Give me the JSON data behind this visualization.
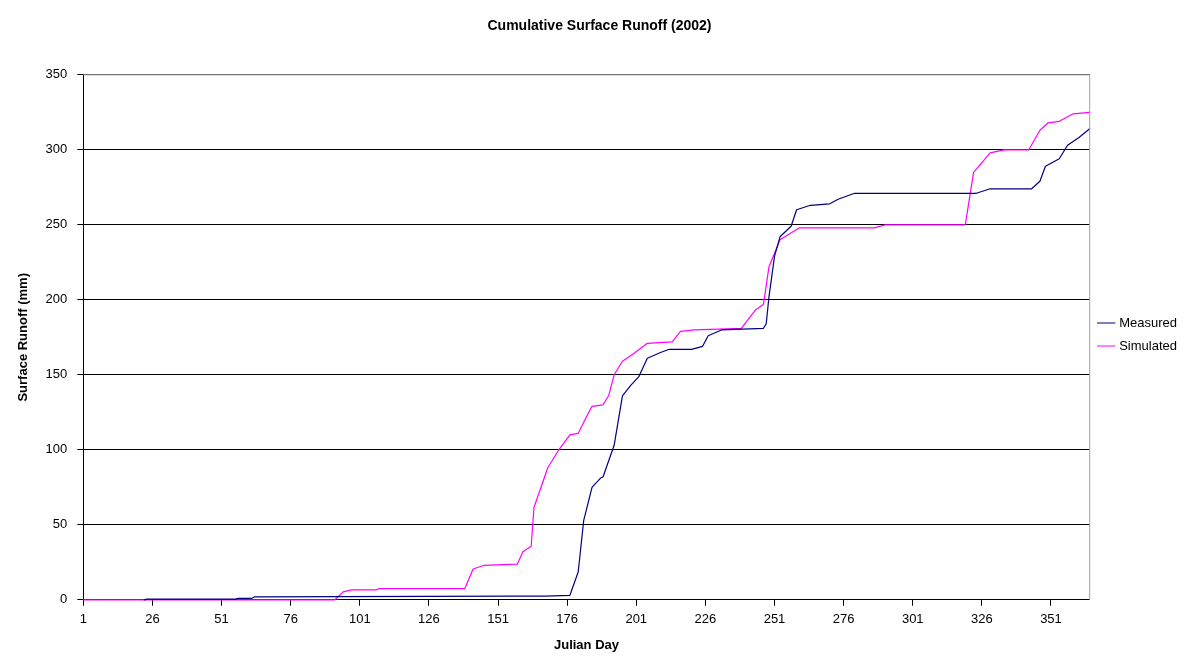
{
  "chart_data": {
    "type": "line",
    "title": "Cumulative Surface Runoff (2002)",
    "xlabel": "Julian Day",
    "ylabel": "Surface Runoff (mm)",
    "xlim": [
      1,
      365
    ],
    "xticks": [
      1,
      26,
      51,
      76,
      101,
      126,
      151,
      176,
      201,
      226,
      251,
      276,
      301,
      326,
      351
    ],
    "ylim": [
      0,
      350
    ],
    "yticks": [
      0,
      50,
      100,
      150,
      200,
      250,
      300,
      350
    ],
    "grid": "y",
    "legend": "right",
    "marker": "none",
    "line_style": "solid",
    "series": [
      {
        "name": "Measured",
        "color": "#000080",
        "x": [
          23,
          24,
          56,
          57,
          62,
          63,
          168,
          177,
          180,
          182,
          185,
          188,
          189,
          193,
          196,
          199,
          202,
          205,
          210,
          213,
          221,
          225,
          227,
          232,
          247,
          248,
          249,
          251,
          253,
          257,
          259,
          264,
          271,
          274,
          280,
          324,
          329,
          344,
          347,
          349,
          354,
          357,
          361,
          365
        ],
        "values": [
          0,
          0.5,
          0.5,
          1,
          1,
          2,
          2.5,
          3,
          18.5,
          53,
          75,
          81,
          82,
          103,
          136,
          143,
          149,
          161,
          165,
          167,
          167,
          169,
          176,
          180,
          181,
          184,
          202,
          229,
          242,
          249,
          260,
          263,
          264,
          267,
          271,
          271,
          274,
          274,
          279,
          289,
          294,
          303,
          308,
          314
        ]
      },
      {
        "name": "Simulated",
        "color": "#ff00ff",
        "x": [
          1,
          92,
          95,
          98,
          107,
          108,
          139,
          142,
          146,
          158,
          160,
          163,
          164,
          169,
          173,
          177,
          180,
          183,
          185,
          189,
          191,
          193,
          196,
          200,
          205,
          214,
          217,
          222,
          239,
          244,
          247,
          249,
          253,
          260,
          287,
          291,
          320,
          323,
          329,
          334,
          343,
          347,
          350,
          354,
          359,
          365
        ],
        "values": [
          0,
          0,
          5.3,
          6.6,
          6.6,
          7.5,
          7.5,
          20.5,
          23,
          23.8,
          32,
          35.7,
          61.5,
          88,
          100,
          110,
          111,
          122,
          129,
          130,
          136,
          150,
          159,
          164,
          171,
          172,
          179,
          180,
          181,
          193,
          197,
          222,
          240,
          248,
          248,
          250,
          250,
          285,
          298,
          300,
          300,
          313,
          318,
          319,
          324,
          325
        ]
      }
    ]
  }
}
